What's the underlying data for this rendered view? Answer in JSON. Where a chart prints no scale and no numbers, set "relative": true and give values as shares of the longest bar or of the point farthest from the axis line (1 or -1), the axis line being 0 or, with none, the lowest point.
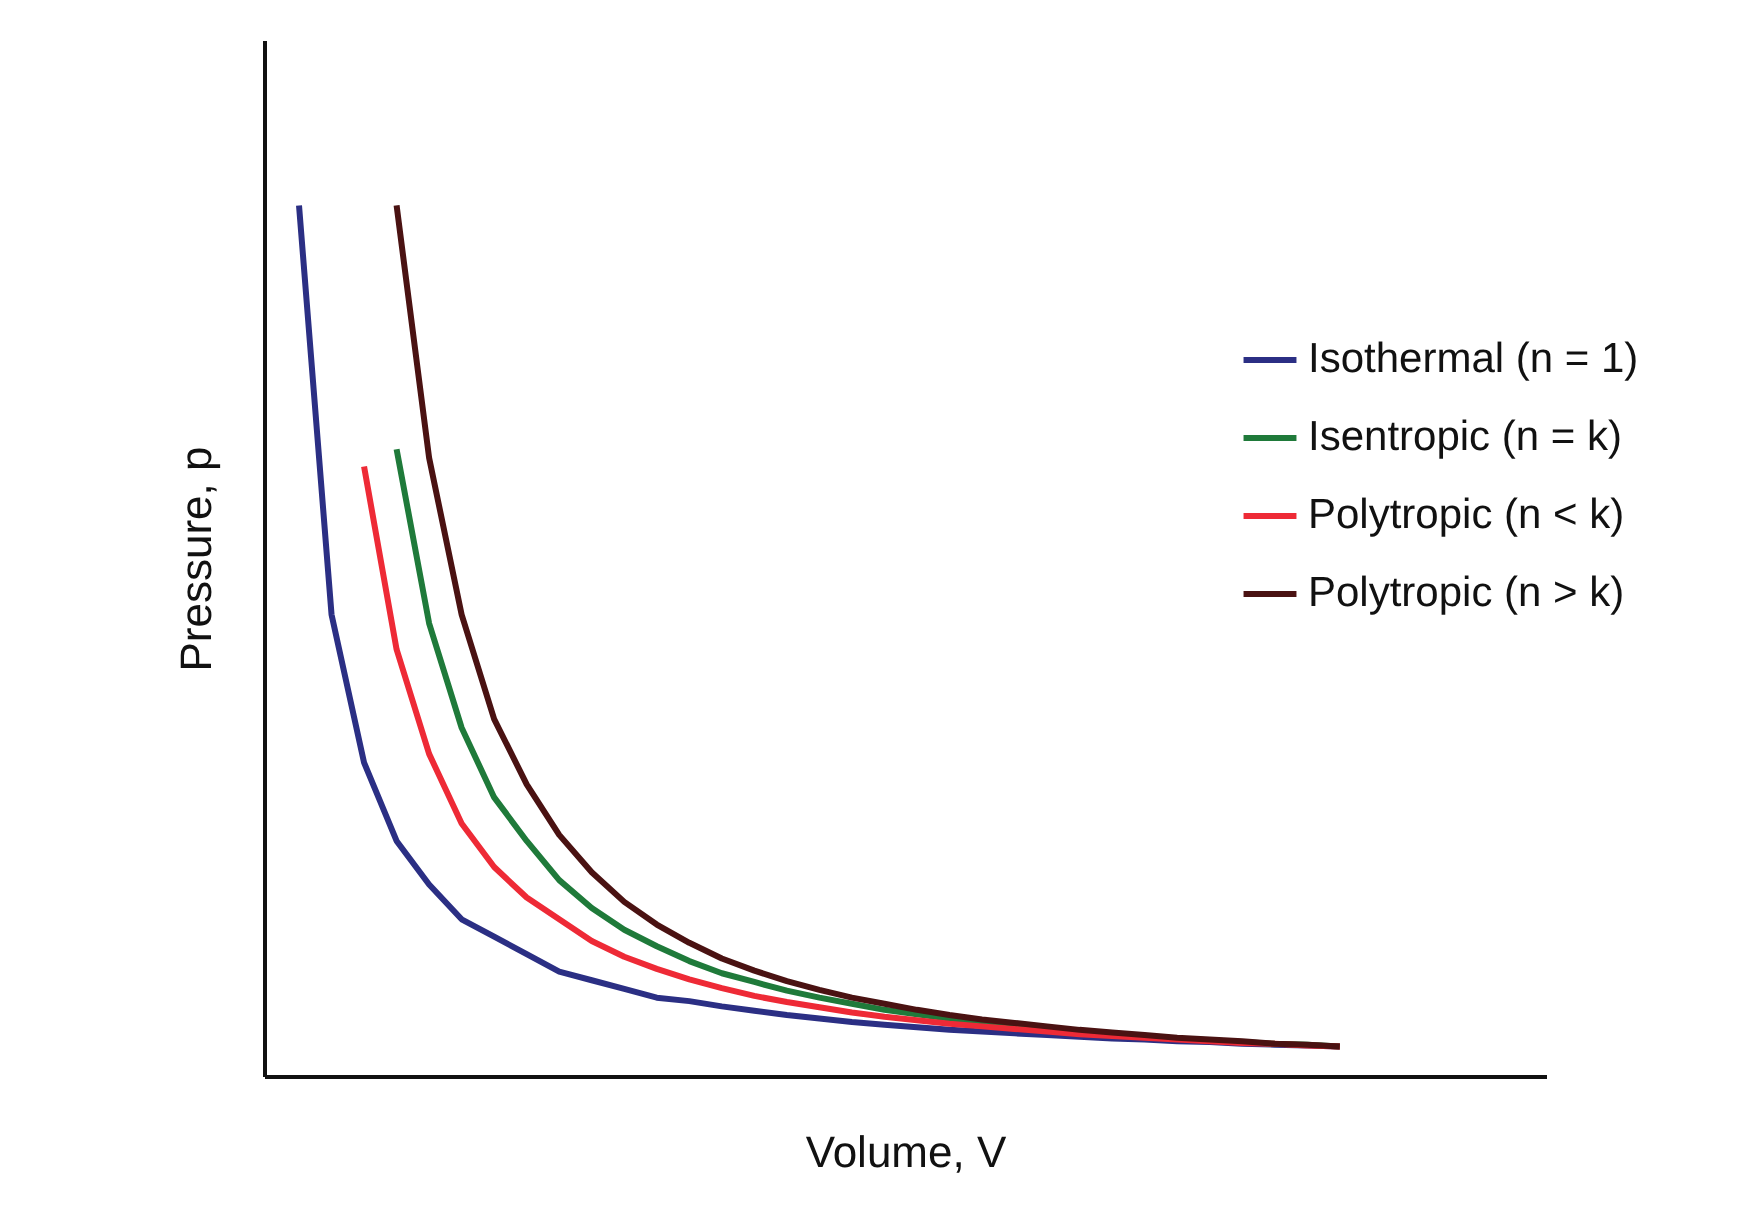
{
  "chart_data": {
    "type": "line",
    "relative": true,
    "xlabel": "Volume, V",
    "ylabel": "Pressure, p",
    "tick_labels": false,
    "grid": false,
    "legend": "top right",
    "marker": "none",
    "line_style": "solid",
    "categories": [
      null,
      null,
      null,
      null,
      null,
      null,
      null,
      null,
      null,
      null,
      null,
      null,
      null,
      null,
      null,
      null,
      null,
      null,
      null,
      null,
      null,
      null,
      null,
      null,
      null,
      null,
      null,
      null,
      null,
      null,
      null,
      null,
      null
    ],
    "series": [
      {
        "name": "Isothermal (n = 1)",
        "color": "#2b2f84",
        "values": [
          1,
          0.53,
          0.36,
          0.27,
          0.22,
          0.18,
          0.16,
          0.14,
          0.12,
          0.11,
          0.1,
          0.09,
          0.086,
          0.08,
          0.075,
          0.07,
          0.066,
          0.062,
          0.059,
          0.056,
          0.053,
          0.051,
          0.049,
          0.047,
          0.045,
          0.043,
          0.042,
          0.04,
          0.039,
          0.037,
          0.036,
          0.035,
          0.034
        ]
      },
      {
        "name": "Isentropic (n = k)",
        "color": "#1f7a3a",
        "values": [
          null,
          null,
          null,
          0.72,
          0.52,
          0.4,
          0.32,
          0.27,
          0.225,
          0.193,
          0.168,
          0.149,
          0.132,
          0.118,
          0.108,
          0.098,
          0.09,
          0.083,
          0.076,
          0.071,
          0.066,
          0.062,
          0.058,
          0.054,
          0.051,
          0.048,
          0.046,
          0.043,
          0.041,
          0.039,
          0.037,
          0.036,
          0.034
        ]
      },
      {
        "name": "Polytropic (n < k)",
        "color": "#ee2a36",
        "values": [
          null,
          null,
          0.7,
          0.49,
          0.37,
          0.29,
          0.24,
          0.205,
          0.18,
          0.155,
          0.137,
          0.123,
          0.111,
          0.101,
          0.092,
          0.085,
          0.079,
          0.073,
          0.068,
          0.064,
          0.06,
          0.057,
          0.054,
          0.051,
          0.048,
          0.046,
          0.044,
          0.042,
          0.04,
          0.038,
          0.037,
          0.035,
          0.034
        ]
      },
      {
        "name": "Polytropic (n > k)",
        "color": "#4a1212",
        "values": [
          null,
          null,
          null,
          1,
          0.71,
          0.53,
          0.41,
          0.335,
          0.277,
          0.234,
          0.2,
          0.174,
          0.153,
          0.135,
          0.121,
          0.109,
          0.099,
          0.09,
          0.083,
          0.076,
          0.07,
          0.065,
          0.061,
          0.057,
          0.053,
          0.05,
          0.047,
          0.044,
          0.042,
          0.04,
          0.037,
          0.036,
          0.034
        ]
      }
    ]
  }
}
